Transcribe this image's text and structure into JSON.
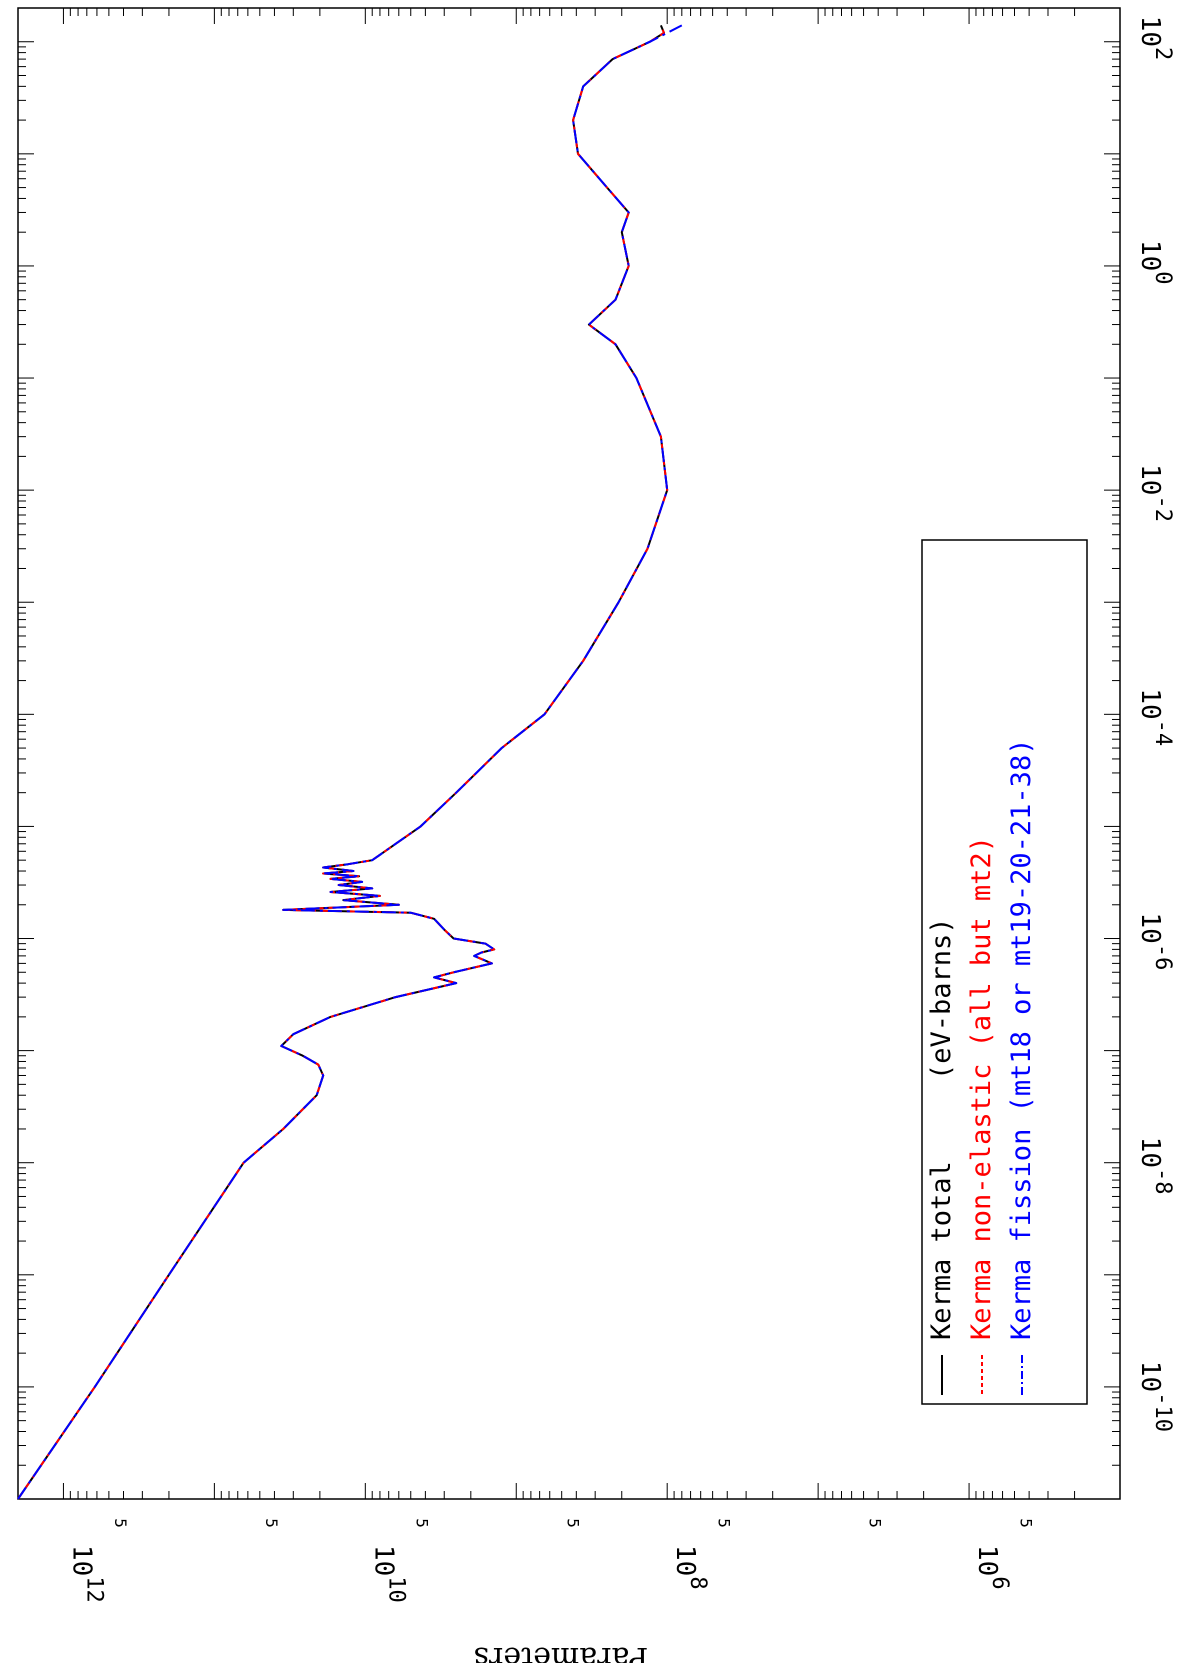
{
  "chart_data": {
    "type": "line",
    "title": "",
    "xlabel": "",
    "ylabel": "Parameters",
    "x_scale": "log",
    "y_scale": "log",
    "xlim": [
      1e-11,
      200
    ],
    "ylim": [
      100000.0,
      2000000000000.0
    ],
    "x_ticks": [
      {
        "mantissa": "10",
        "exponent": "-10",
        "value": 1e-10
      },
      {
        "mantissa": "10",
        "exponent": "-8",
        "value": 1e-08
      },
      {
        "mantissa": "10",
        "exponent": "-6",
        "value": 1e-06
      },
      {
        "mantissa": "10",
        "exponent": "-4",
        "value": 0.0001
      },
      {
        "mantissa": "10",
        "exponent": "-2",
        "value": 0.01
      },
      {
        "mantissa": "10",
        "exponent": "0",
        "value": 1
      },
      {
        "mantissa": "10",
        "exponent": "2",
        "value": 100
      }
    ],
    "y_ticks": [
      {
        "mantissa": "10",
        "exponent": "12",
        "value": 1000000000000.0
      },
      {
        "mantissa": "10",
        "exponent": "10",
        "value": 10000000000.0
      },
      {
        "mantissa": "10",
        "exponent": "8",
        "value": 100000000.0
      },
      {
        "mantissa": "10",
        "exponent": "6",
        "value": 1000000.0
      }
    ],
    "y_minor_label": "5",
    "legend_placement": "bottom-right (rotated)",
    "legend_title": "(eV-barns)",
    "x": [
      1e-11,
      1e-10,
      1e-09,
      1e-08,
      2e-08,
      4e-08,
      6e-08,
      7.5e-08,
      9e-08,
      1.1e-07,
      1.4e-07,
      2e-07,
      3e-07,
      4e-07,
      4.5e-07,
      5e-07,
      6e-07,
      7e-07,
      7.5e-07,
      8e-07,
      9e-07,
      1e-06,
      1.2e-06,
      1.5e-06,
      1.7e-06,
      1.8e-06,
      2e-06,
      2.2e-06,
      2.4e-06,
      2.6e-06,
      2.8e-06,
      3e-06,
      3.2e-06,
      3.4e-06,
      3.6e-06,
      3.8e-06,
      4e-06,
      4.3e-06,
      4.6e-06,
      5e-06,
      1e-05,
      2e-05,
      5e-05,
      0.0001,
      0.0003,
      0.001,
      0.003,
      0.01,
      0.03,
      0.1,
      0.2,
      0.3,
      0.5,
      1,
      2,
      3,
      5,
      10,
      20,
      40,
      70,
      100,
      120,
      140
    ],
    "series": [
      {
        "name": "Kerma total",
        "color": "#000000",
        "dash": "solid",
        "y": [
          2000000000000.0,
          620000000000.0,
          200000000000.0,
          64000000000.0,
          35000000000.0,
          21000000000.0,
          19000000000.0,
          20500000000.0,
          26000000000.0,
          36000000000.0,
          30000000000.0,
          17000000000.0,
          6300000000.0,
          2500000000.0,
          3500000000.0,
          2600000000.0,
          1450000000.0,
          1900000000.0,
          1700000000.0,
          1400000000.0,
          1600000000.0,
          2600000000.0,
          3000000000.0,
          3500000000.0,
          5000000000.0,
          35000000000.0,
          6000000000.0,
          14000000000.0,
          8000000000.0,
          17000000000.0,
          9000000000.0,
          15000000000.0,
          10500000000.0,
          17000000000.0,
          11000000000.0,
          19000000000.0,
          12000000000.0,
          19000000000.0,
          13000000000.0,
          9000000000.0,
          4300000000.0,
          2500000000.0,
          1250000000.0,
          650000000.0,
          360000000.0,
          210000000.0,
          135000000.0,
          100000000.0,
          110000000.0,
          160000000.0,
          220000000.0,
          330000000.0,
          220000000.0,
          180000000.0,
          200000000.0,
          180000000.0,
          250000000.0,
          390000000.0,
          420000000.0,
          360000000.0,
          230000000.0,
          130000000.0,
          105000000.0,
          110000000.0
        ]
      },
      {
        "name": "Kerma non-elastic (all but mt2)",
        "color": "#ff0000",
        "dash": "dashed",
        "y": [
          2000000000000.0,
          620000000000.0,
          200000000000.0,
          64000000000.0,
          35000000000.0,
          21000000000.0,
          19000000000.0,
          20500000000.0,
          26000000000.0,
          36000000000.0,
          30000000000.0,
          17000000000.0,
          6300000000.0,
          2500000000.0,
          3500000000.0,
          2600000000.0,
          1450000000.0,
          1900000000.0,
          1700000000.0,
          1400000000.0,
          1600000000.0,
          2600000000.0,
          3000000000.0,
          3500000000.0,
          5000000000.0,
          35000000000.0,
          6000000000.0,
          14000000000.0,
          8000000000.0,
          17000000000.0,
          9000000000.0,
          15000000000.0,
          10500000000.0,
          17000000000.0,
          11000000000.0,
          19000000000.0,
          12000000000.0,
          19000000000.0,
          13000000000.0,
          9000000000.0,
          4300000000.0,
          2500000000.0,
          1250000000.0,
          650000000.0,
          360000000.0,
          210000000.0,
          135000000.0,
          100000000.0,
          110000000.0,
          160000000.0,
          220000000.0,
          330000000.0,
          220000000.0,
          180000000.0,
          200000000.0,
          180000000.0,
          250000000.0,
          390000000.0,
          420000000.0,
          360000000.0,
          230000000.0,
          130000000.0,
          105000000.0,
          110000000.0
        ]
      },
      {
        "name": "Kerma fission (mt18 or mt19-20-21-38)",
        "color": "#0000ff",
        "dash": "dashdot",
        "y": [
          2000000000000.0,
          620000000000.0,
          200000000000.0,
          64000000000.0,
          35000000000.0,
          21000000000.0,
          19000000000.0,
          20500000000.0,
          26000000000.0,
          36000000000.0,
          30000000000.0,
          17000000000.0,
          6300000000.0,
          2500000000.0,
          3500000000.0,
          2600000000.0,
          1450000000.0,
          1900000000.0,
          1700000000.0,
          1400000000.0,
          1600000000.0,
          2600000000.0,
          3000000000.0,
          3500000000.0,
          5000000000.0,
          35000000000.0,
          6000000000.0,
          14000000000.0,
          8000000000.0,
          17000000000.0,
          9000000000.0,
          15000000000.0,
          10500000000.0,
          17000000000.0,
          11000000000.0,
          19000000000.0,
          12000000000.0,
          19000000000.0,
          13000000000.0,
          9000000000.0,
          4300000000.0,
          2500000000.0,
          1250000000.0,
          650000000.0,
          360000000.0,
          210000000.0,
          135000000.0,
          100000000.0,
          110000000.0,
          160000000.0,
          220000000.0,
          330000000.0,
          220000000.0,
          180000000.0,
          200000000.0,
          180000000.0,
          250000000.0,
          390000000.0,
          420000000.0,
          360000000.0,
          230000000.0,
          130000000.0,
          100000000.0,
          80000000.0
        ]
      }
    ]
  }
}
